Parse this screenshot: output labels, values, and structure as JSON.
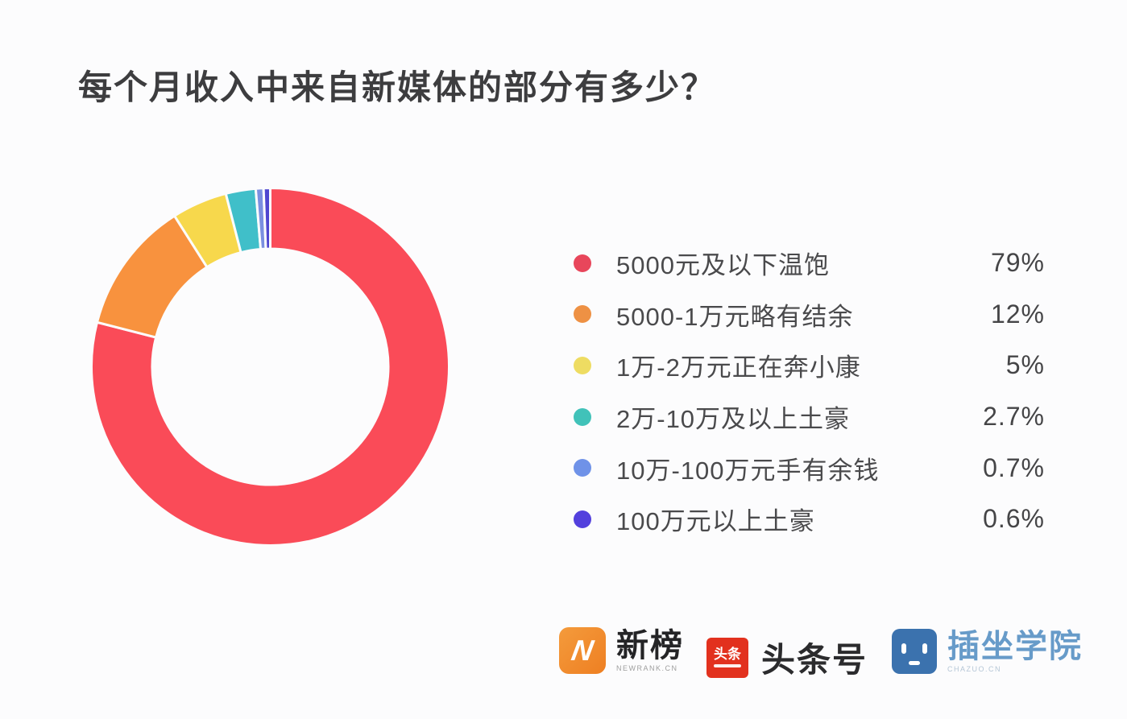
{
  "page": {
    "background": "#fcfcfd"
  },
  "title": "每个月收入中来自新媒体的部分有多少？",
  "chart_data": {
    "type": "pie",
    "subtype": "donut",
    "title": "每个月收入中来自新媒体的部分有多少？",
    "start_angle_deg": 0,
    "direction": "clockwise",
    "inner_radius_ratio": 0.66,
    "legend_position": "right",
    "total": 100,
    "series": [
      {
        "label": "5000元及以下温饱",
        "value": 79,
        "display": "79%",
        "color": "#fa4b58",
        "dot_color": "#e8465b"
      },
      {
        "label": "5000-1万元略有结余",
        "value": 12,
        "display": "12%",
        "color": "#f8923e",
        "dot_color": "#ee9144"
      },
      {
        "label": "1万-2万元正在奔小康",
        "value": 5,
        "display": "5%",
        "color": "#f7d84c",
        "dot_color": "#eedc62"
      },
      {
        "label": "2万-10万及以上土豪",
        "value": 2.7,
        "display": "2.7%",
        "color": "#40bfc9",
        "dot_color": "#41c2b9"
      },
      {
        "label": "10万-100万元手有余钱",
        "value": 0.7,
        "display": "0.7%",
        "color": "#7b8fe0",
        "dot_color": "#6f92e8"
      },
      {
        "label": "100万元以上土豪",
        "value": 0.6,
        "display": "0.6%",
        "color": "#4f46d0",
        "dot_color": "#5340dd"
      }
    ]
  },
  "footer": {
    "logos": [
      {
        "name": "newrank",
        "badge_glyph": "N",
        "text": "新榜",
        "subtext": "NEWRANK.CN",
        "badge_color": "#ee7f22"
      },
      {
        "name": "toutiao",
        "badge_text": "头条",
        "text": "头条号",
        "badge_color": "#e2311e"
      },
      {
        "name": "chazuo",
        "text": "插坐学院",
        "subtext": "CHAZUO.CN",
        "badge_color": "#3b72ae"
      }
    ]
  }
}
